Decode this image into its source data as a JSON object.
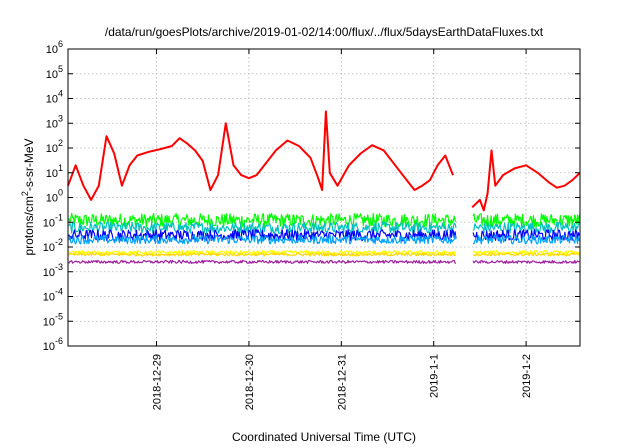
{
  "chart_data": {
    "type": "line",
    "title": "/data/run/goesPlots/archive/2019-01-02/14:00/flux/../flux/5daysEarthDataFluxes.txt",
    "xlabel": "Coordinated Universal Time (UTC)",
    "ylabel": {
      "base": "protons/cm",
      "sup": "2",
      "rest": "-s-sr-MeV"
    },
    "yscale": "log",
    "ylim_exp": [
      -6,
      6
    ],
    "y_ticks": [
      {
        "base": "10",
        "exp": "-6",
        "v": -6
      },
      {
        "base": "10",
        "exp": "-5",
        "v": -5
      },
      {
        "base": "10",
        "exp": "-4",
        "v": -4
      },
      {
        "base": "10",
        "exp": "-3",
        "v": -3
      },
      {
        "base": "10",
        "exp": "-2",
        "v": -2
      },
      {
        "base": "10",
        "exp": "-1",
        "v": -1
      },
      {
        "base": "10",
        "exp": "0",
        "v": 0
      },
      {
        "base": "10",
        "exp": "1",
        "v": 1
      },
      {
        "base": "10",
        "exp": "2",
        "v": 2
      },
      {
        "base": "10",
        "exp": "3",
        "v": 3
      },
      {
        "base": "10",
        "exp": "4",
        "v": 4
      },
      {
        "base": "10",
        "exp": "5",
        "v": 5
      },
      {
        "base": "10",
        "exp": "6",
        "v": 6
      }
    ],
    "xlim": [
      "2018-12-28T01:00",
      "2019-01-02T14:00"
    ],
    "x_ticks": [
      "2018-12-29",
      "2018-12-30",
      "2018-12-31",
      "2019-1-1",
      "2019-1-2"
    ],
    "x_tick_dates": [
      "2018-12-29T00:00",
      "2018-12-30T00:00",
      "2018-12-31T00:00",
      "2019-01-01T00:00",
      "2019-01-02T00:00"
    ],
    "grid": true,
    "data_gap": [
      "2019-01-01T06:00",
      "2019-01-01T10:00"
    ],
    "series": [
      {
        "color": "#ff0000",
        "points": [
          [
            "2018-12-28T01:00",
            3
          ],
          [
            "2018-12-28T03:00",
            20
          ],
          [
            "2018-12-28T05:00",
            3
          ],
          [
            "2018-12-28T07:00",
            0.8
          ],
          [
            "2018-12-28T09:00",
            3
          ],
          [
            "2018-12-28T11:00",
            300
          ],
          [
            "2018-12-28T13:00",
            60
          ],
          [
            "2018-12-28T15:00",
            3
          ],
          [
            "2018-12-28T17:00",
            20
          ],
          [
            "2018-12-28T19:00",
            50
          ],
          [
            "2018-12-28T22:00",
            70
          ],
          [
            "2018-12-29T01:00",
            90
          ],
          [
            "2018-12-29T04:00",
            120
          ],
          [
            "2018-12-29T06:00",
            250
          ],
          [
            "2018-12-29T08:00",
            150
          ],
          [
            "2018-12-29T10:00",
            80
          ],
          [
            "2018-12-29T12:00",
            30
          ],
          [
            "2018-12-29T14:00",
            2
          ],
          [
            "2018-12-29T16:00",
            8
          ],
          [
            "2018-12-29T18:00",
            1000
          ],
          [
            "2018-12-29T20:00",
            20
          ],
          [
            "2018-12-29T22:00",
            8
          ],
          [
            "2018-12-30T00:00",
            6
          ],
          [
            "2018-12-30T02:00",
            8
          ],
          [
            "2018-12-30T04:00",
            20
          ],
          [
            "2018-12-30T07:00",
            80
          ],
          [
            "2018-12-30T10:00",
            200
          ],
          [
            "2018-12-30T13:00",
            120
          ],
          [
            "2018-12-30T16:00",
            40
          ],
          [
            "2018-12-30T18:00",
            6
          ],
          [
            "2018-12-30T19:00",
            2
          ],
          [
            "2018-12-30T20:00",
            3000
          ],
          [
            "2018-12-30T21:00",
            10
          ],
          [
            "2018-12-30T23:00",
            3
          ],
          [
            "2018-12-31T02:00",
            20
          ],
          [
            "2018-12-31T05:00",
            60
          ],
          [
            "2018-12-31T08:00",
            130
          ],
          [
            "2018-12-31T11:00",
            80
          ],
          [
            "2018-12-31T14:00",
            20
          ],
          [
            "2018-12-31T17:00",
            5
          ],
          [
            "2018-12-31T19:00",
            2
          ],
          [
            "2018-12-31T21:00",
            3
          ],
          [
            "2018-12-31T23:00",
            5
          ],
          [
            "2019-01-01T01:00",
            20
          ],
          [
            "2019-01-01T03:00",
            50
          ],
          [
            "2019-01-01T04:00",
            20
          ],
          [
            "2019-01-01T05:00",
            8
          ],
          [
            "2019-01-01T10:00",
            0.4
          ],
          [
            "2019-01-01T12:00",
            0.8
          ],
          [
            "2019-01-01T13:00",
            0.3
          ],
          [
            "2019-01-01T14:00",
            1.5
          ],
          [
            "2019-01-01T15:00",
            80
          ],
          [
            "2019-01-01T16:00",
            3
          ],
          [
            "2019-01-01T18:00",
            8
          ],
          [
            "2019-01-01T21:00",
            15
          ],
          [
            "2019-01-02T00:00",
            20
          ],
          [
            "2019-01-02T03:00",
            10
          ],
          [
            "2019-01-02T06:00",
            4
          ],
          [
            "2019-01-02T08:00",
            2.5
          ],
          [
            "2019-01-02T10:00",
            3
          ],
          [
            "2019-01-02T12:00",
            5
          ],
          [
            "2019-01-02T14:00",
            10
          ]
        ]
      },
      {
        "color": "#00ff00",
        "level": 0.12,
        "spread": 0.55
      },
      {
        "color": "#00c0c0",
        "level": 0.06,
        "spread": 0.45
      },
      {
        "color": "#0000ff",
        "level": 0.03,
        "spread": 0.45
      },
      {
        "color": "#00a0ff",
        "level": 0.02,
        "spread": 0.35
      },
      {
        "color": "#ffff00",
        "level": 0.006,
        "spread": 0.15
      },
      {
        "color": "#ffd700",
        "level": 0.005,
        "spread": 0.12
      },
      {
        "color": "#a020a0",
        "level": 0.0025,
        "spread": 0.12
      }
    ]
  }
}
